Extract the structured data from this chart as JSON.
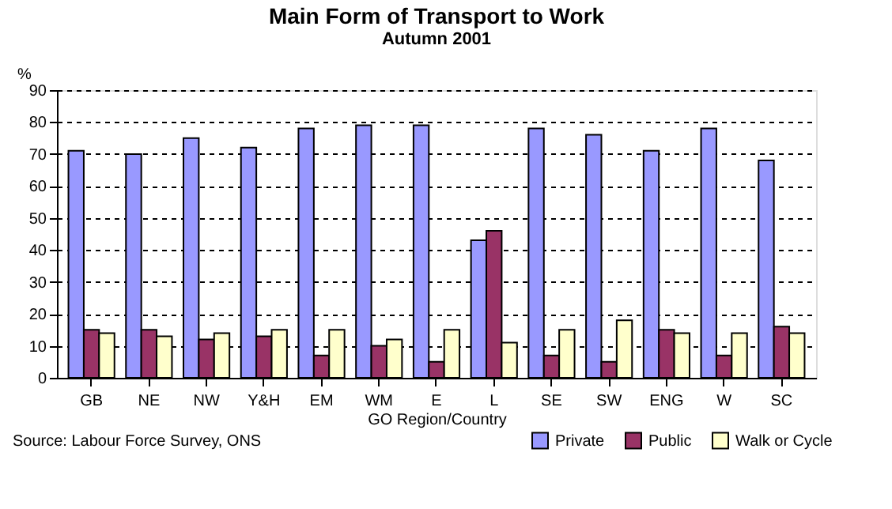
{
  "chart_data": {
    "type": "bar",
    "title": "Main Form of Transport to Work",
    "subtitle": "Autumn 2001",
    "xlabel": "GO Region/Country",
    "ylabel": "%",
    "categories": [
      "GB",
      "NE",
      "NW",
      "Y&H",
      "EM",
      "WM",
      "E",
      "L",
      "SE",
      "SW",
      "ENG",
      "W",
      "SC"
    ],
    "series": [
      {
        "name": "Private",
        "color": "#9999ff",
        "values": [
          71,
          70,
          75,
          72,
          78,
          79,
          79,
          43,
          78,
          76,
          71,
          78,
          68
        ]
      },
      {
        "name": "Public",
        "color": "#993366",
        "values": [
          15,
          15,
          12,
          13,
          7,
          10,
          5,
          46,
          7,
          5,
          15,
          7,
          16
        ]
      },
      {
        "name": "Walk or Cycle",
        "color": "#ffffcc",
        "values": [
          14,
          13,
          14,
          15,
          15,
          12,
          15,
          11,
          15,
          18,
          14,
          14,
          14
        ]
      }
    ],
    "ylim": [
      0,
      90
    ],
    "yticks": [
      0,
      10,
      20,
      30,
      40,
      50,
      60,
      70,
      80,
      90
    ],
    "grid": "y",
    "legend": "bottom right",
    "annotations": [
      "Source: Labour Force Survey, ONS"
    ]
  }
}
